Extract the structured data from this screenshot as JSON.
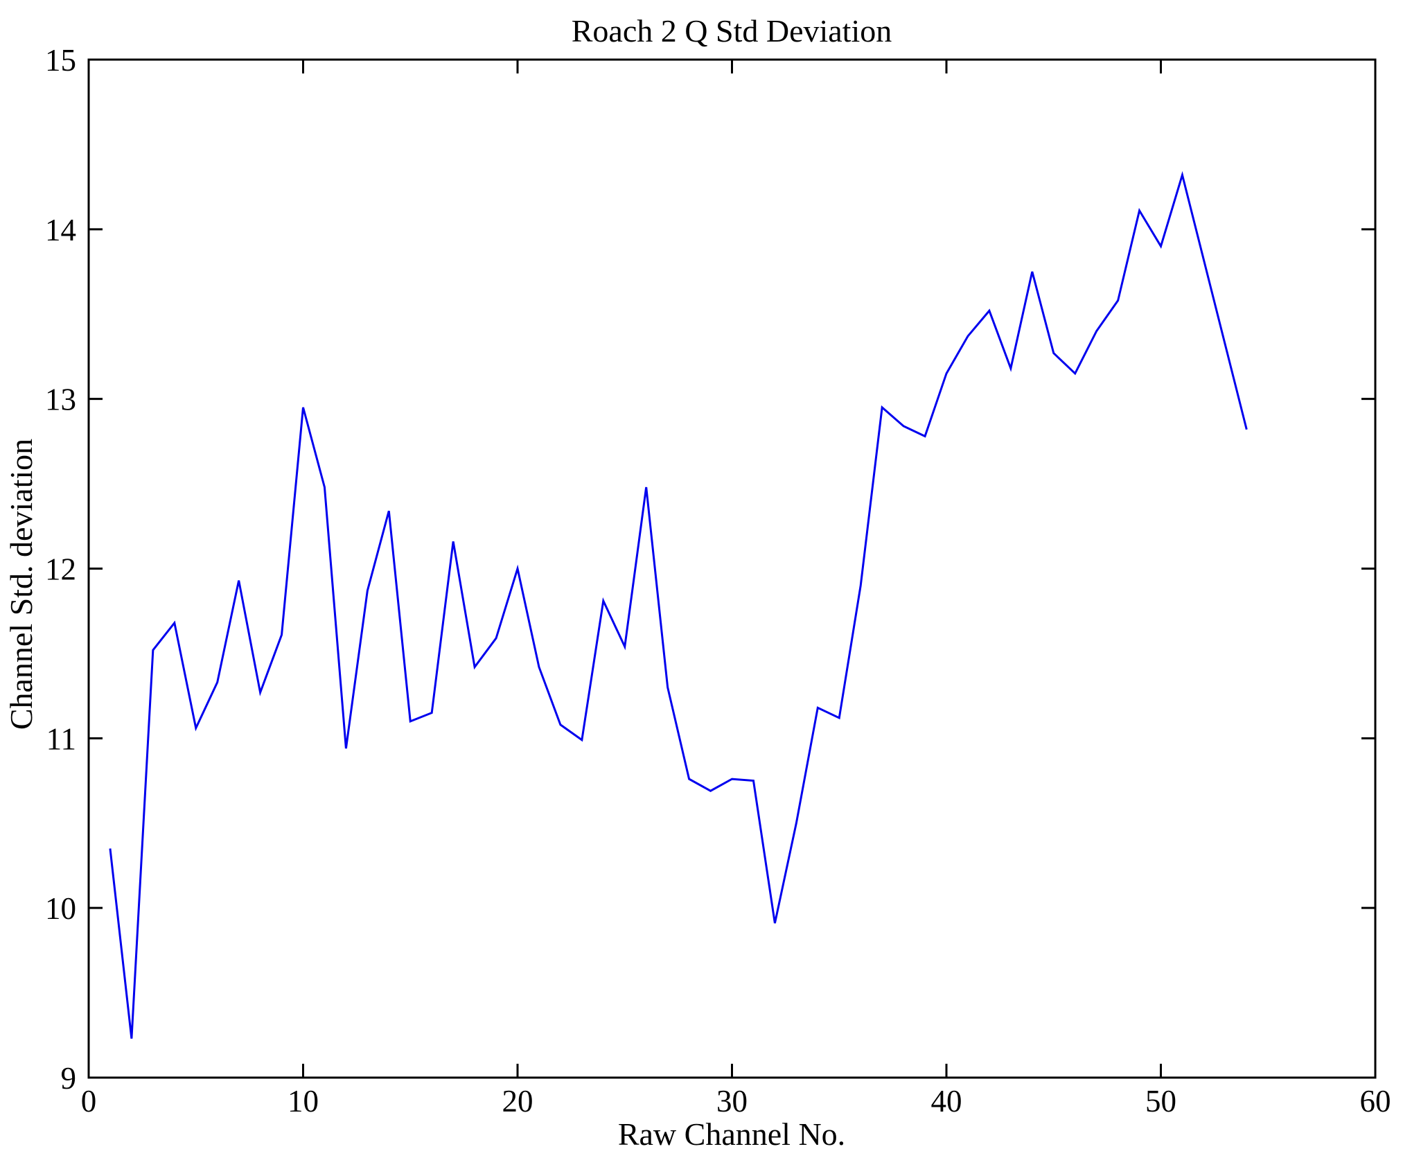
{
  "figure": {
    "background": "#ffffff"
  },
  "chart_data": {
    "type": "line",
    "title": "Roach 2 Q Std Deviation",
    "xlabel": "Raw Channel No.",
    "ylabel": "Channel Std. deviation",
    "xlim": [
      0,
      60
    ],
    "ylim": [
      9,
      15
    ],
    "xticks": [
      0,
      10,
      20,
      30,
      40,
      50,
      60
    ],
    "yticks": [
      9,
      10,
      11,
      12,
      13,
      14,
      15
    ],
    "grid": false,
    "legend": "none",
    "box": true,
    "tick_direction": "in",
    "line_color": "#0000EE",
    "axis_color": "#000000",
    "x": [
      1,
      2,
      3,
      4,
      5,
      6,
      7,
      8,
      9,
      10,
      11,
      12,
      13,
      14,
      15,
      16,
      17,
      18,
      19,
      20,
      21,
      22,
      23,
      24,
      25,
      26,
      27,
      28,
      29,
      30,
      31,
      32,
      33,
      34,
      35,
      36,
      37,
      38,
      39,
      40,
      41,
      42,
      43,
      44,
      45,
      46,
      47,
      48,
      49,
      50,
      51,
      52,
      53,
      54
    ],
    "values": [
      10.35,
      9.23,
      11.52,
      11.68,
      11.06,
      11.33,
      11.93,
      11.27,
      11.61,
      12.95,
      12.48,
      10.94,
      11.87,
      12.34,
      11.1,
      11.15,
      12.16,
      11.42,
      11.59,
      12.0,
      11.42,
      11.08,
      10.99,
      11.81,
      11.54,
      12.48,
      11.3,
      10.76,
      10.69,
      10.76,
      10.75,
      9.91,
      10.5,
      11.18,
      11.12,
      11.9,
      12.95,
      12.84,
      12.78,
      13.15,
      13.37,
      13.52,
      13.18,
      13.75,
      13.27,
      13.15,
      13.4,
      13.58,
      14.11,
      13.9,
      14.32,
      13.82,
      13.32,
      12.82
    ]
  }
}
